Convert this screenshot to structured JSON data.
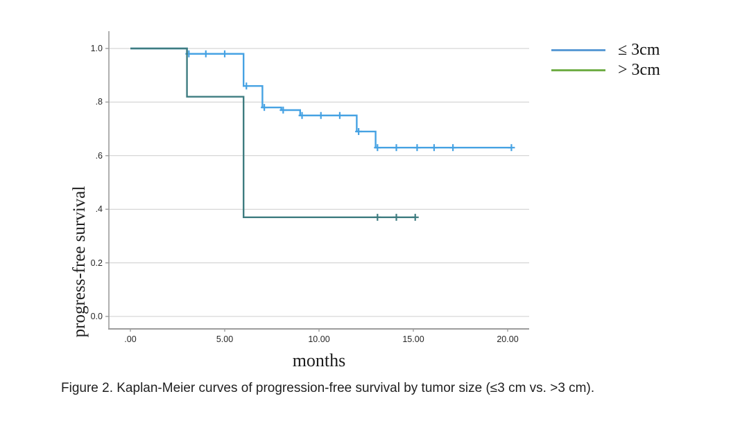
{
  "figure": {
    "caption": "Figure 2. Kaplan-Meier curves of progression-free survival by tumor size (≤3 cm vs. >3 cm)."
  },
  "chart_data": {
    "type": "line",
    "subtype": "kaplan-meier-step",
    "title": "",
    "xlabel": "months",
    "ylabel": "progress-free survival",
    "grid": "horizontal",
    "xlim": [
      -1.1,
      21.1
    ],
    "ylim": [
      -0.05,
      1.06
    ],
    "x_ticks": [
      {
        "label": ".00",
        "value": 0
      },
      {
        "label": "5.00",
        "value": 5
      },
      {
        "label": "10.00",
        "value": 10
      },
      {
        "label": "15.00",
        "value": 15
      },
      {
        "label": "20.00",
        "value": 20
      }
    ],
    "y_ticks": [
      {
        "label": "1.0",
        "value": 1.0
      },
      {
        "label": ".8",
        "value": 0.8
      },
      {
        "label": ".6",
        "value": 0.6
      },
      {
        "label": ".4",
        "value": 0.4
      },
      {
        "label": "0.2",
        "value": 0.2
      },
      {
        "label": "0.0",
        "value": 0.0
      }
    ],
    "censor_marker": "plus",
    "legend": {
      "position": "top-right-outside",
      "entries": [
        {
          "label": "≤ 3cm",
          "color": "#5b9bd5"
        },
        {
          "label": "> 3cm",
          "color": "#70ad47"
        }
      ]
    },
    "series": [
      {
        "name": "≤ 3cm",
        "curve_color": "#46a2e3",
        "steps": [
          [
            0,
            1.0
          ],
          [
            3,
            0.98
          ],
          [
            6,
            0.86
          ],
          [
            7,
            0.78
          ],
          [
            8,
            0.77
          ],
          [
            9,
            0.75
          ],
          [
            12,
            0.69
          ],
          [
            13,
            0.63
          ]
        ],
        "end_time": 20.2,
        "censor_times": [
          [
            3.1,
            0.98
          ],
          [
            4.0,
            0.98
          ],
          [
            5.0,
            0.98
          ],
          [
            6.15,
            0.86
          ],
          [
            7.1,
            0.78
          ],
          [
            8.1,
            0.77
          ],
          [
            9.1,
            0.75
          ],
          [
            10.1,
            0.75
          ],
          [
            11.1,
            0.75
          ],
          [
            12.1,
            0.69
          ],
          [
            13.1,
            0.63
          ],
          [
            14.1,
            0.63
          ],
          [
            15.2,
            0.63
          ],
          [
            16.1,
            0.63
          ],
          [
            17.1,
            0.63
          ],
          [
            20.2,
            0.63
          ]
        ]
      },
      {
        "name": "> 3cm",
        "curve_color": "#3e7c80",
        "steps": [
          [
            0,
            1.0
          ],
          [
            3,
            0.82
          ],
          [
            6,
            0.37
          ]
        ],
        "end_time": 15.1,
        "censor_times": [
          [
            13.1,
            0.37
          ],
          [
            14.1,
            0.37
          ],
          [
            15.1,
            0.37
          ]
        ]
      }
    ]
  }
}
